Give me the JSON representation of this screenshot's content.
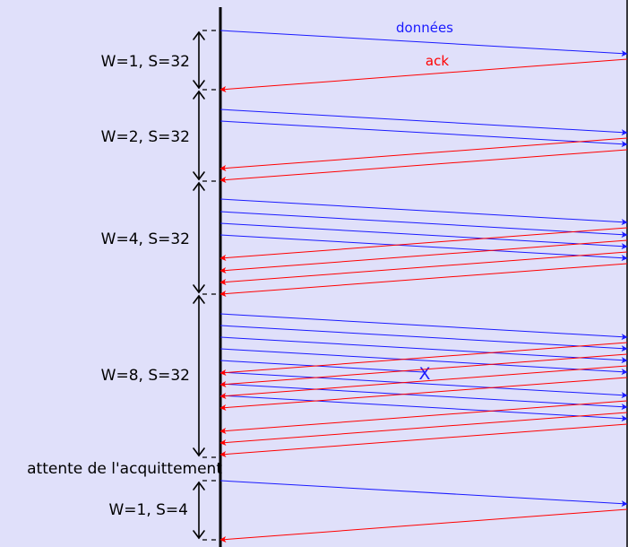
{
  "legend": {
    "data_label": "données",
    "ack_label": "ack"
  },
  "lost_marker": "X",
  "phases": [
    {
      "label": "W=1, S=32",
      "window": 1
    },
    {
      "label": "W=2, S=32",
      "window": 2
    },
    {
      "label": "W=4, S=32",
      "window": 4
    },
    {
      "label": "W=8, S=32",
      "window": 8
    },
    {
      "label": "W=1, S=4",
      "window": 1
    }
  ],
  "wait_label": "attente de l'acquittement",
  "colors": {
    "background": "#e0e0fa",
    "data": "#1a1aff",
    "ack": "#ff0000",
    "timeline": "#000000"
  }
}
